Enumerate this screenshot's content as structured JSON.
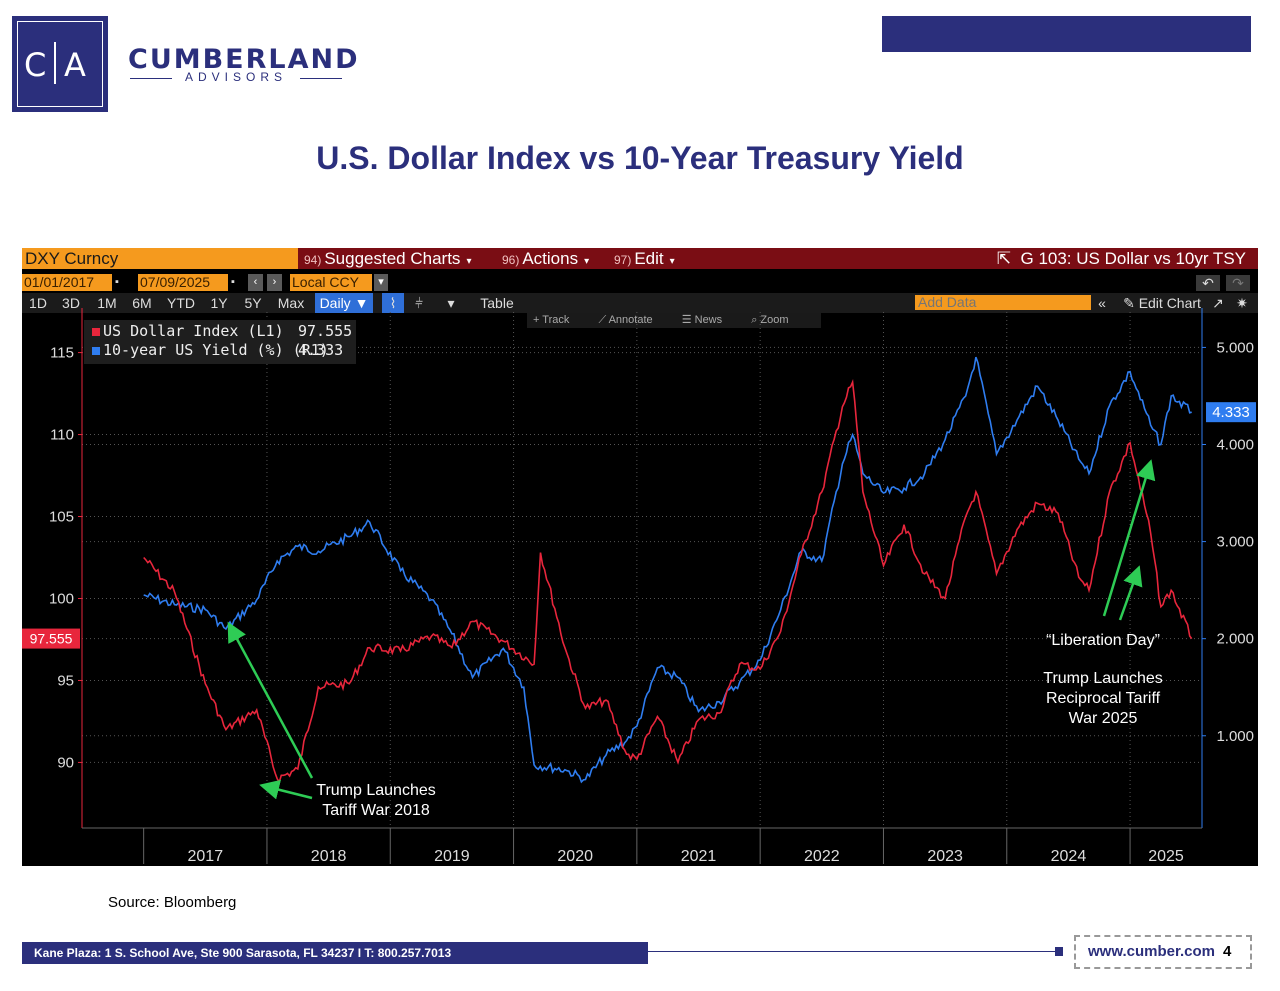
{
  "brand": {
    "logo_left": "C",
    "logo_right": "A",
    "name": "CUMBERLAND",
    "sub": "ADVISORS"
  },
  "page_title": "U.S. Dollar Index vs 10-Year Treasury Yield",
  "terminal": {
    "ticker": "DXY Curncy",
    "menus": [
      {
        "num": "94)",
        "label": "Suggested Charts"
      },
      {
        "num": "96)",
        "label": "Actions"
      },
      {
        "num": "97)",
        "label": "Edit"
      }
    ],
    "chart_id": "G 103: US Dollar vs 10yr TSY",
    "start_date": "01/01/2017",
    "end_date": "07/09/2025",
    "currency": "Local CCY",
    "ranges": [
      "1D",
      "3D",
      "1M",
      "6M",
      "YTD",
      "1Y",
      "5Y",
      "Max"
    ],
    "period": "Daily",
    "table_label": "Table",
    "add_data_placeholder": "Add Data",
    "edit_chart": "Edit Chart",
    "tools": [
      "Track",
      "Annotate",
      "News",
      "Zoom"
    ]
  },
  "colors": {
    "dxy": "#e8263c",
    "yield": "#2f7df0",
    "navy": "#2b2f7c",
    "annotation": "#2ecc55"
  },
  "chart_data": {
    "type": "line",
    "x_labels": [
      "2017",
      "2018",
      "2019",
      "2020",
      "2021",
      "2022",
      "2023",
      "2024",
      "2025"
    ],
    "legend_placement": "top-left",
    "series": [
      {
        "name": "US Dollar Index (L1)",
        "axis": "left",
        "last_value": "97.555",
        "last_label": "97.555",
        "x": [
          "2017-01",
          "2017-04",
          "2017-07",
          "2017-09",
          "2017-12",
          "2018-02",
          "2018-04",
          "2018-06",
          "2018-09",
          "2018-11",
          "2019-02",
          "2019-05",
          "2019-07",
          "2019-09",
          "2019-12",
          "2020-03",
          "2020-03-20",
          "2020-06",
          "2020-08",
          "2020-10",
          "2020-12",
          "2021-01",
          "2021-03",
          "2021-05",
          "2021-07",
          "2021-09",
          "2021-11",
          "2022-01",
          "2022-03",
          "2022-05",
          "2022-07",
          "2022-09",
          "2022-10",
          "2022-11",
          "2023-01",
          "2023-03",
          "2023-05",
          "2023-07",
          "2023-09",
          "2023-10",
          "2023-12",
          "2024-02",
          "2024-04",
          "2024-06",
          "2024-08",
          "2024-09",
          "2024-11",
          "2025-01",
          "2025-03",
          "2025-04",
          "2025-05",
          "2025-07"
        ],
        "values": [
          102.5,
          100.4,
          94.8,
          92.0,
          93.2,
          89.0,
          89.6,
          94.6,
          94.8,
          97.0,
          96.8,
          97.7,
          97.0,
          98.6,
          97.4,
          96.0,
          102.8,
          97.0,
          93.3,
          93.8,
          90.5,
          90.2,
          92.8,
          90.0,
          92.6,
          93.0,
          96.0,
          95.7,
          98.0,
          102.7,
          106.5,
          111.7,
          113.2,
          106.5,
          102.0,
          104.5,
          101.5,
          100.0,
          105.0,
          106.5,
          101.5,
          104.2,
          105.8,
          105.2,
          101.3,
          100.5,
          106.5,
          109.5,
          104.0,
          99.5,
          100.5,
          97.555
        ]
      },
      {
        "name": "10-year US Yield (%) (R1)",
        "axis": "right",
        "last_value": "4.333",
        "last_label": "4.333",
        "x": [
          "2017-01",
          "2017-04",
          "2017-07",
          "2017-09",
          "2017-12",
          "2018-02",
          "2018-04",
          "2018-06",
          "2018-09",
          "2018-11",
          "2019-02",
          "2019-05",
          "2019-07",
          "2019-09",
          "2019-12",
          "2020-02",
          "2020-03",
          "2020-06",
          "2020-08",
          "2020-10",
          "2020-12",
          "2021-01",
          "2021-03",
          "2021-05",
          "2021-07",
          "2021-09",
          "2021-11",
          "2022-01",
          "2022-03",
          "2022-05",
          "2022-07",
          "2022-09",
          "2022-10",
          "2022-11",
          "2023-01",
          "2023-03",
          "2023-05",
          "2023-07",
          "2023-09",
          "2023-10",
          "2023-12",
          "2024-02",
          "2024-04",
          "2024-06",
          "2024-08",
          "2024-09",
          "2024-11",
          "2025-01",
          "2025-03",
          "2025-04",
          "2025-05",
          "2025-07"
        ],
        "values": [
          2.45,
          2.35,
          2.3,
          2.1,
          2.4,
          2.8,
          2.95,
          2.9,
          3.05,
          3.2,
          2.7,
          2.4,
          2.05,
          1.6,
          1.9,
          1.5,
          0.7,
          0.65,
          0.55,
          0.8,
          0.95,
          1.1,
          1.7,
          1.6,
          1.25,
          1.35,
          1.55,
          1.78,
          2.3,
          2.9,
          2.8,
          3.8,
          4.1,
          3.7,
          3.5,
          3.55,
          3.7,
          4.05,
          4.5,
          4.9,
          3.9,
          4.25,
          4.6,
          4.25,
          3.85,
          3.7,
          4.4,
          4.75,
          4.2,
          4.0,
          4.5,
          4.333
        ]
      }
    ],
    "y_left": {
      "min": 86,
      "max": 116.5,
      "ticks": [
        90,
        95,
        100,
        105,
        110,
        115
      ]
    },
    "y_right": {
      "min": 0.05,
      "max": 5.2,
      "ticks": [
        "1.000",
        "2.000",
        "3.000",
        "4.000",
        "5.000"
      ]
    },
    "x_range": [
      "2016-07",
      "2025-08"
    ],
    "annotations": [
      {
        "text": [
          "Trump Launches",
          "Tariff War 2018"
        ]
      },
      {
        "text": [
          "“Liberation Day”"
        ]
      },
      {
        "text": [
          "Trump Launches",
          "Reciprocal Tariff",
          "War 2025"
        ]
      }
    ],
    "grid": true
  },
  "source": "Source: Bloomberg",
  "footer": {
    "address": "Kane Plaza:  1 S. School Ave, Ste 900  Sarasota, FL 34237    I    T: 800.257.7013",
    "website": "www.cumber.com",
    "page": "4"
  }
}
